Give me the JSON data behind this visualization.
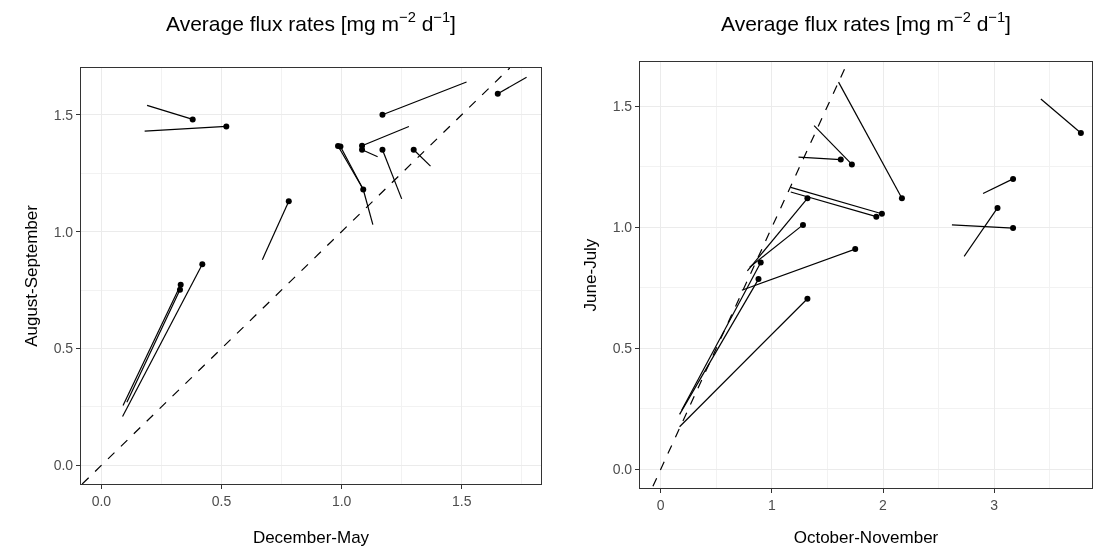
{
  "chart_data": [
    {
      "type": "scatter",
      "title": "Average flux rates [mg m$^{−2}$ d$^{−1}$]",
      "xlabel": "December-May",
      "ylabel": "August-September",
      "xlim": [
        -0.085,
        1.83
      ],
      "ylim": [
        -0.08,
        1.7
      ],
      "xticks": [
        {
          "value": 0,
          "label": "0.0"
        },
        {
          "value": 0.5,
          "label": "0.5"
        },
        {
          "value": 1,
          "label": "1.0"
        },
        {
          "value": 1.5,
          "label": "1.5"
        }
      ],
      "yticks": [
        {
          "value": 0,
          "label": "0.0"
        },
        {
          "value": 0.5,
          "label": "0.5"
        },
        {
          "value": 1,
          "label": "1.0"
        },
        {
          "value": 1.5,
          "label": "1.5"
        }
      ],
      "grid": true,
      "series": [
        {
          "marker": "circle",
          "color": "#000000",
          "x": [
            0.38,
            0.52,
            0.78,
            1.17,
            1.65,
            0.985,
            0.995,
            1.085,
            1.085,
            1.17,
            1.3,
            1.09,
            0.33,
            0.327,
            0.42
          ],
          "values": [
            1.48,
            1.45,
            1.13,
            1.5,
            1.59,
            1.366,
            1.364,
            1.367,
            1.35,
            1.35,
            1.35,
            1.18,
            0.773,
            0.751,
            0.86
          ]
        },
        {
          "type": "line",
          "color": "#000000",
          "x": [
            0.38,
            0.19
          ],
          "values": [
            1.48,
            1.54
          ]
        },
        {
          "type": "line",
          "color": "#000000",
          "x": [
            0.52,
            0.18
          ],
          "values": [
            1.45,
            1.43
          ]
        },
        {
          "type": "line",
          "color": "#000000",
          "x": [
            0.78,
            0.67
          ],
          "values": [
            1.13,
            0.88
          ]
        },
        {
          "type": "line",
          "color": "#000000",
          "x": [
            1.17,
            1.52
          ],
          "values": [
            1.5,
            1.64
          ]
        },
        {
          "type": "line",
          "color": "#000000",
          "x": [
            1.65,
            1.77
          ],
          "values": [
            1.59,
            1.66
          ]
        },
        {
          "type": "line",
          "color": "#000000",
          "x": [
            0.985,
            1.085
          ],
          "values": [
            1.366,
            1.19
          ]
        },
        {
          "type": "line",
          "color": "#000000",
          "x": [
            0.995,
            1.09
          ],
          "values": [
            1.364,
            1.18
          ]
        },
        {
          "type": "line",
          "color": "#000000",
          "x": [
            1.085,
            1.28
          ],
          "values": [
            1.367,
            1.45
          ]
        },
        {
          "type": "line",
          "color": "#000000",
          "x": [
            1.085,
            1.15
          ],
          "values": [
            1.35,
            1.32
          ]
        },
        {
          "type": "line",
          "color": "#000000",
          "x": [
            1.17,
            1.25
          ],
          "values": [
            1.35,
            1.14
          ]
        },
        {
          "type": "line",
          "color": "#000000",
          "x": [
            1.3,
            1.37
          ],
          "values": [
            1.35,
            1.28
          ]
        },
        {
          "type": "line",
          "color": "#000000",
          "x": [
            1.09,
            1.13
          ],
          "values": [
            1.18,
            1.03
          ]
        },
        {
          "type": "line",
          "color": "#000000",
          "x": [
            0.33,
            0.09
          ],
          "values": [
            0.773,
            0.256
          ]
        },
        {
          "type": "line",
          "color": "#000000",
          "x": [
            0.327,
            0.106
          ],
          "values": [
            0.751,
            0.27
          ]
        },
        {
          "type": "line",
          "color": "#000000",
          "x": [
            0.42,
            0.088
          ],
          "values": [
            0.86,
            0.209
          ]
        },
        {
          "type": "line",
          "color": "#000000",
          "line_style": "dashed",
          "x": [
            -0.08,
            1.7
          ],
          "values": [
            -0.08,
            1.7
          ]
        }
      ]
    },
    {
      "type": "scatter",
      "title": "Average flux rates [mg m$^{−2}$ d$^{−1}$]",
      "xlabel": "October-November",
      "ylabel": "June-July",
      "xlim": [
        -0.186,
        3.88
      ],
      "ylim": [
        -0.077,
        1.683
      ],
      "xticks": [
        0,
        1,
        2,
        3
      ],
      "yticks": [
        {
          "value": 0,
          "label": "0.0"
        },
        {
          "value": 0.5,
          "label": "0.5"
        },
        {
          "value": 1,
          "label": "1.0"
        },
        {
          "value": 1.5,
          "label": "1.5"
        }
      ],
      "grid": true,
      "series": [
        {
          "marker": "circle",
          "color": "#000000",
          "x": [
            1.62,
            1.72,
            1.32,
            1.28,
            0.9,
            1.32,
            0.88,
            1.75,
            1.94,
            1.99,
            2.17,
            3.17,
            3.03,
            3.17,
            3.78
          ],
          "values": [
            1.28,
            1.26,
            1.12,
            1.01,
            0.855,
            0.705,
            0.786,
            0.91,
            1.044,
            1.056,
            1.12,
            1.2,
            1.08,
            0.997,
            1.39
          ]
        },
        {
          "type": "line",
          "color": "#000000",
          "x": [
            1.62,
            1.24
          ],
          "values": [
            1.28,
            1.29
          ]
        },
        {
          "type": "line",
          "color": "#000000",
          "x": [
            1.72,
            1.38
          ],
          "values": [
            1.26,
            1.42
          ]
        },
        {
          "type": "line",
          "color": "#000000",
          "x": [
            1.32,
            0.78
          ],
          "values": [
            1.12,
            0.82
          ]
        },
        {
          "type": "line",
          "color": "#000000",
          "x": [
            1.28,
            0.8
          ],
          "values": [
            1.01,
            0.835
          ]
        },
        {
          "type": "line",
          "color": "#000000",
          "x": [
            0.9,
            0.19
          ],
          "values": [
            0.855,
            0.245
          ]
        },
        {
          "type": "line",
          "color": "#000000",
          "x": [
            1.32,
            0.17
          ],
          "values": [
            0.705,
            0.176
          ]
        },
        {
          "type": "line",
          "color": "#000000",
          "x": [
            0.88,
            0.17
          ],
          "values": [
            0.786,
            0.227
          ]
        },
        {
          "type": "line",
          "color": "#000000",
          "x": [
            1.75,
            0.73
          ],
          "values": [
            0.91,
            0.74
          ]
        },
        {
          "type": "line",
          "color": "#000000",
          "x": [
            1.94,
            1.17
          ],
          "values": [
            1.044,
            1.146
          ]
        },
        {
          "type": "line",
          "color": "#000000",
          "x": [
            1.99,
            1.17
          ],
          "values": [
            1.056,
            1.165
          ]
        },
        {
          "type": "line",
          "color": "#000000",
          "x": [
            2.17,
            1.6
          ],
          "values": [
            1.12,
            1.6
          ]
        },
        {
          "type": "line",
          "color": "#000000",
          "x": [
            3.17,
            2.9
          ],
          "values": [
            1.2,
            1.14
          ]
        },
        {
          "type": "line",
          "color": "#000000",
          "x": [
            3.03,
            2.73
          ],
          "values": [
            1.08,
            0.88
          ]
        },
        {
          "type": "line",
          "color": "#000000",
          "x": [
            3.17,
            2.62
          ],
          "values": [
            0.997,
            1.01
          ]
        },
        {
          "type": "line",
          "color": "#000000",
          "x": [
            3.78,
            3.42
          ],
          "values": [
            1.39,
            1.53
          ]
        },
        {
          "type": "line",
          "color": "#000000",
          "line_style": "dashed",
          "x": [
            -0.07,
            1.68
          ],
          "values": [
            -0.07,
            1.68
          ]
        }
      ]
    }
  ]
}
